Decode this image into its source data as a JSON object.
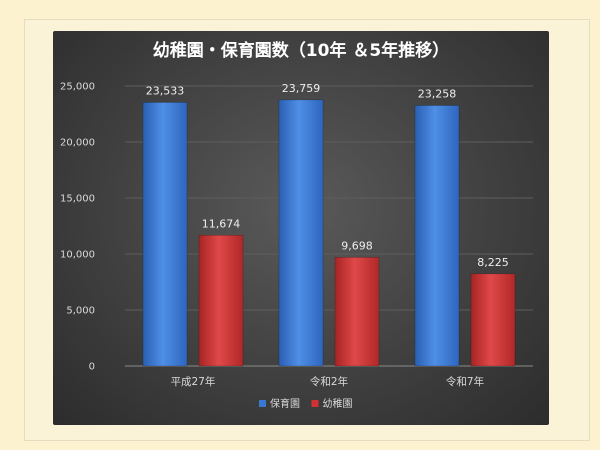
{
  "chart_data": {
    "type": "bar",
    "title": "幼稚園・保育園数（10年 ＆5年推移）",
    "categories": [
      "平成27年",
      "令和2年",
      "令和7年"
    ],
    "series": [
      {
        "name": "保育園",
        "values": [
          23533,
          23759,
          23258
        ],
        "labels": [
          "23,533",
          "23,759",
          "23,258"
        ],
        "color": "#3a77d1"
      },
      {
        "name": "幼稚園",
        "values": [
          11674,
          9698,
          8225
        ],
        "labels": [
          "11,674",
          "9,698",
          "8,225"
        ],
        "color": "#cf3232"
      }
    ],
    "ylim": [
      0,
      25000
    ],
    "yticks": [
      0,
      5000,
      10000,
      15000,
      20000,
      25000
    ],
    "ytick_labels": [
      "0",
      "5,000",
      "10,000",
      "15,000",
      "20,000",
      "25,000"
    ],
    "grid": true,
    "legend": "bottom"
  }
}
